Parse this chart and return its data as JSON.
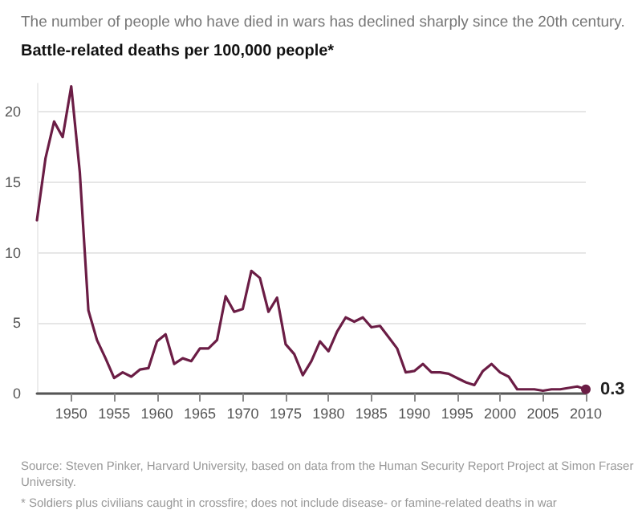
{
  "chart_data": {
    "type": "line",
    "title": "The number of people who have died in wars has declined sharply since the 20th century.",
    "ylabel": "Battle-related deaths per 100,000 people*",
    "x": [
      1946,
      1947,
      1948,
      1949,
      1950,
      1951,
      1952,
      1953,
      1954,
      1955,
      1956,
      1957,
      1958,
      1959,
      1960,
      1961,
      1962,
      1963,
      1964,
      1965,
      1966,
      1967,
      1968,
      1969,
      1970,
      1971,
      1972,
      1973,
      1974,
      1975,
      1976,
      1977,
      1978,
      1979,
      1980,
      1981,
      1982,
      1983,
      1984,
      1985,
      1986,
      1987,
      1988,
      1989,
      1990,
      1991,
      1992,
      1993,
      1994,
      1995,
      1996,
      1997,
      1998,
      1999,
      2000,
      2001,
      2002,
      2003,
      2004,
      2005,
      2006,
      2007,
      2008,
      2009,
      2010
    ],
    "series": [
      {
        "color": "#6b1d45",
        "values": [
          12.3,
          16.7,
          19.3,
          18.2,
          21.8,
          15.7,
          5.9,
          3.8,
          2.5,
          1.1,
          1.5,
          1.2,
          1.7,
          1.8,
          3.7,
          4.2,
          2.1,
          2.5,
          2.3,
          3.2,
          3.2,
          3.8,
          6.9,
          5.8,
          6.0,
          8.7,
          8.2,
          5.8,
          6.8,
          3.5,
          2.8,
          1.3,
          2.3,
          3.7,
          3.0,
          4.4,
          5.4,
          5.1,
          5.4,
          4.7,
          4.8,
          4.0,
          3.2,
          1.5,
          1.6,
          2.1,
          1.5,
          1.5,
          1.4,
          1.1,
          0.8,
          0.6,
          1.6,
          2.1,
          1.5,
          1.2,
          0.3,
          0.3,
          0.3,
          0.2,
          0.3,
          0.3,
          0.4,
          0.5,
          0.3
        ],
        "value_labels": [
          null,
          null,
          null,
          null,
          null,
          null,
          null,
          null,
          null,
          null,
          null,
          null,
          null,
          null,
          null,
          null,
          null,
          null,
          null,
          null,
          null,
          null,
          null,
          null,
          null,
          null,
          null,
          null,
          null,
          null,
          null,
          null,
          null,
          null,
          null,
          null,
          null,
          null,
          null,
          null,
          null,
          null,
          null,
          null,
          null,
          null,
          null,
          null,
          null,
          null,
          null,
          null,
          null,
          null,
          null,
          null,
          null,
          null,
          null,
          null,
          null,
          null,
          null,
          null,
          "0.3"
        ]
      }
    ],
    "xlim": [
      1946,
      2010
    ],
    "xticks": [
      1950,
      1955,
      1960,
      1965,
      1970,
      1975,
      1980,
      1985,
      1990,
      1995,
      2000,
      2005,
      2010
    ],
    "ylim": [
      0,
      22
    ],
    "yticks": [
      0,
      5,
      10,
      15,
      20
    ],
    "grid": "y",
    "annotations": [
      "Source: Steven Pinker, Harvard University, based on data from the Human Security Report Project at Simon Fraser University.",
      "* Soldiers plus civilians caught in crossfire; does not include disease- or famine-related deaths in war"
    ]
  }
}
